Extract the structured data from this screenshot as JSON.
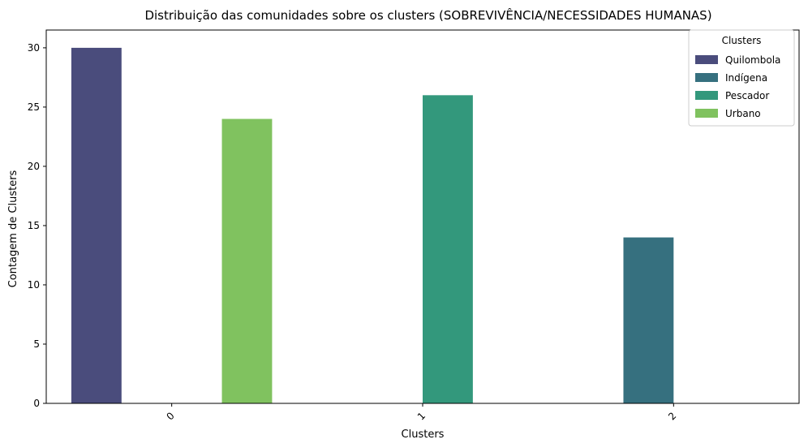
{
  "chart_data": {
    "type": "bar",
    "title": "Distribuição das comunidades sobre os clusters (SOBREVIVÊNCIA/NECESSIDADES HUMANAS)",
    "xlabel": "Clusters",
    "ylabel": "Contagem de Clusters",
    "categories": [
      "0",
      "1",
      "2"
    ],
    "ylim": [
      0,
      31.5
    ],
    "yticks": [
      0,
      5,
      10,
      15,
      20,
      25,
      30
    ],
    "grid": false,
    "legend": {
      "title": "Clusters",
      "placement": "top-right"
    },
    "series": [
      {
        "name": "Quilombola",
        "color": "#4a4c7c",
        "values": [
          30,
          null,
          null
        ]
      },
      {
        "name": "Indígena",
        "color": "#36707f",
        "values": [
          null,
          null,
          14
        ]
      },
      {
        "name": "Pescador",
        "color": "#33987c",
        "values": [
          null,
          26,
          null
        ]
      },
      {
        "name": "Urbano",
        "color": "#80c25f",
        "values": [
          24,
          null,
          null
        ]
      }
    ]
  }
}
